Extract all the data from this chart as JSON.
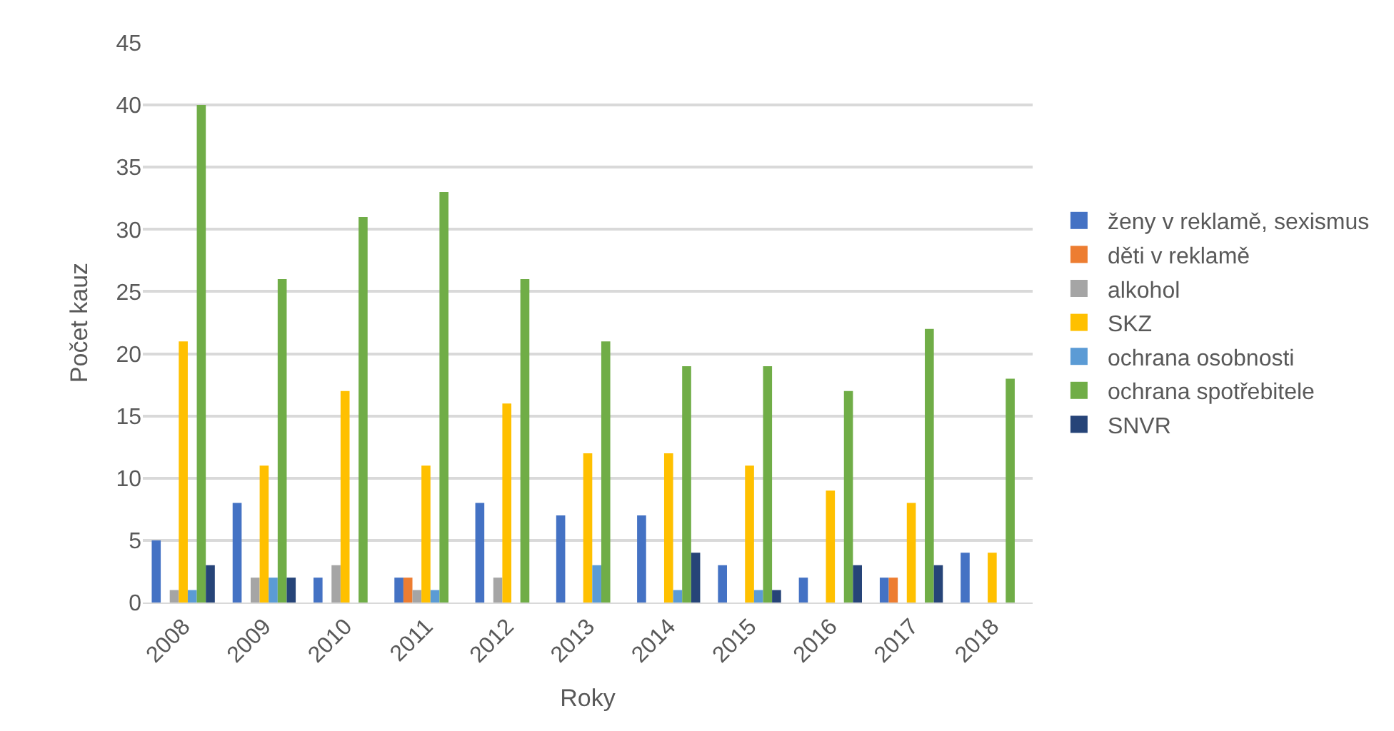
{
  "chart_data": {
    "type": "bar",
    "xlabel": "Roky",
    "ylabel": "Počet kauz",
    "categories": [
      "2008",
      "2009",
      "2010",
      "2011",
      "2012",
      "2013",
      "2014",
      "2015",
      "2016",
      "2017",
      "2018"
    ],
    "series": [
      {
        "name": "ženy v reklamě, sexismus",
        "color": "#4472c4",
        "values": [
          5,
          8,
          2,
          2,
          8,
          7,
          7,
          3,
          2,
          2,
          4
        ]
      },
      {
        "name": "děti v reklamě",
        "color": "#ed7d31",
        "values": [
          0,
          0,
          0,
          2,
          0,
          0,
          0,
          0,
          0,
          2,
          0
        ]
      },
      {
        "name": "alkohol",
        "color": "#a5a5a5",
        "values": [
          1,
          2,
          3,
          1,
          2,
          0,
          0,
          0,
          0,
          0,
          0
        ]
      },
      {
        "name": "SKZ",
        "color": "#ffc000",
        "values": [
          21,
          11,
          17,
          11,
          16,
          12,
          12,
          11,
          9,
          8,
          4
        ]
      },
      {
        "name": "ochrana osobnosti",
        "color": "#5b9bd5",
        "values": [
          1,
          2,
          0,
          1,
          0,
          3,
          1,
          1,
          0,
          0,
          0
        ]
      },
      {
        "name": "ochrana spotřebitele",
        "color": "#70ad47",
        "values": [
          40,
          26,
          31,
          33,
          26,
          21,
          19,
          19,
          17,
          22,
          18
        ]
      },
      {
        "name": "SNVR",
        "color": "#264478",
        "values": [
          3,
          2,
          0,
          0,
          0,
          0,
          4,
          1,
          3,
          3,
          0
        ]
      }
    ],
    "ylim": [
      0,
      45
    ],
    "yticks": [
      0,
      5,
      10,
      15,
      20,
      25,
      30,
      35,
      40,
      45
    ],
    "grid": "y",
    "legend": "right"
  }
}
